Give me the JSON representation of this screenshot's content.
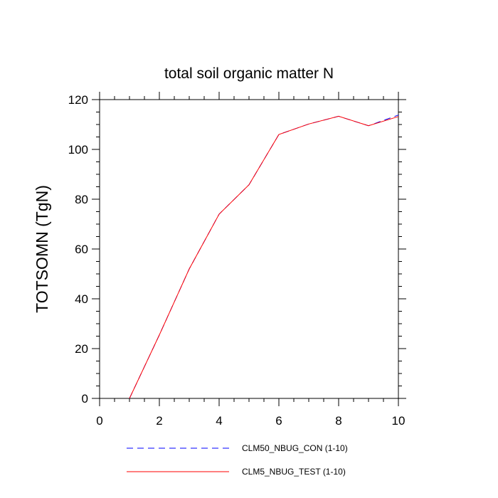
{
  "chart_data": {
    "type": "line",
    "title": "total soil organic matter N",
    "xlabel": "",
    "ylabel": "TOTSOMN  (TgN)",
    "xlim": [
      0,
      10
    ],
    "ylim": [
      0,
      120
    ],
    "xticks": [
      0,
      2,
      4,
      6,
      8,
      10
    ],
    "yticks": [
      0,
      20,
      40,
      60,
      80,
      100,
      120
    ],
    "grid": false,
    "legend_position": "bottom",
    "x": [
      1,
      2,
      3,
      4,
      5,
      6,
      7,
      8,
      9,
      10
    ],
    "series": [
      {
        "name": "CLM50_NBUG_CON (1-10)",
        "color": "#0000ff",
        "style": "dashed",
        "values": [
          0,
          25.5,
          52,
          74,
          85.8,
          106,
          110.2,
          113.3,
          109.5,
          113.8
        ]
      },
      {
        "name": "CLM5_NBUG_TEST (1-10)",
        "color": "#ff0000",
        "style": "solid",
        "values": [
          0,
          25.5,
          52,
          74,
          85.8,
          106,
          110.2,
          113.3,
          109.5,
          113.2
        ]
      }
    ]
  }
}
